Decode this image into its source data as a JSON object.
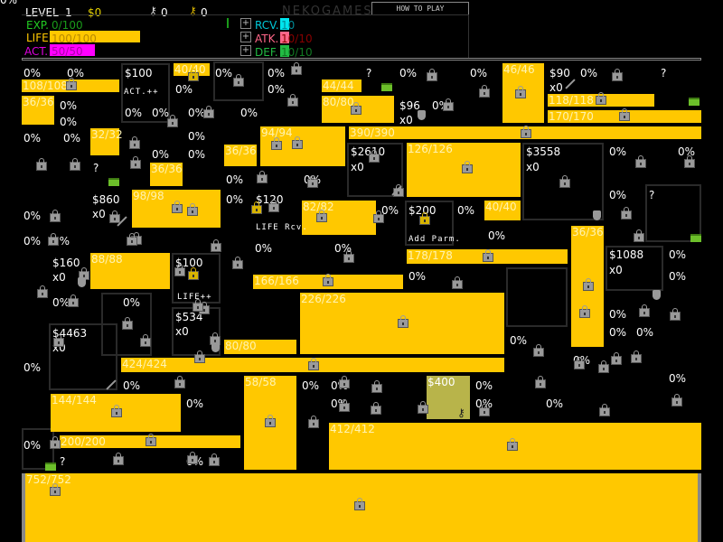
{
  "header": {
    "level_label": "LEVEL",
    "level_value": "1",
    "money": "$0",
    "silver_keys": "0",
    "gold_keys": "0",
    "brand": "NEKOGAMES",
    "how_to_play": "HOW TO PLAY",
    "exp_label": "EXP.",
    "exp_value": "0/100",
    "life_label": "LIFE",
    "life_value": "100/100",
    "life_fraction": 1.0,
    "act_label": "ACT.",
    "act_value": "50/50",
    "act_fraction": 1.0,
    "rcv_label": "RCV.",
    "rcv_value": "10",
    "atk_label": "ATK.",
    "atk_value": "10/10",
    "def_label": "DEF.",
    "def_value": "10/10"
  },
  "colors": {
    "block": "#ffc800",
    "exp": "#22cc22",
    "life": "#ffc800",
    "act": "#ff00ff",
    "rcv": "#00e5ee",
    "atk": "#ff6688",
    "def": "#22bb44",
    "purchased": "#b8b44a"
  },
  "blocks": [
    "108/108",
    "36/36",
    "40/40",
    "44/44",
    "80/80",
    "32/32",
    "36/36",
    "36/36",
    "94/94",
    "390/390",
    "98/98",
    "82/82",
    "46/46",
    "118/118",
    "170/170",
    "126/126",
    "40/40",
    "36/36",
    "178/178",
    "88/88",
    "166/166",
    "226/226",
    "80/80",
    "424/424",
    "144/144",
    "58/58",
    "200/200",
    "412/412",
    "752/752",
    "$400"
  ],
  "labels": [
    "0%",
    "0%",
    "$100",
    "ACT.++",
    "0%",
    "0%",
    "0%",
    "0%",
    "?",
    "0%",
    "0%",
    "$90",
    "x0",
    "0%",
    "?",
    "0%",
    "0%",
    "0%",
    "0%",
    "0%",
    "0%",
    "$96",
    "x0",
    "0%",
    "0%",
    "0%",
    "0%",
    "0%",
    "0%",
    "?",
    "0%",
    "0%",
    "$2610",
    "x0",
    "$3558",
    "x0",
    "0%",
    "0%",
    "0%",
    "?",
    "$860",
    "x0",
    "0%",
    "0%",
    "$120",
    "LIFE Rcv.",
    "0%",
    "$200",
    "Add Parm.",
    "0%",
    "0%",
    "0%",
    "0%",
    "0%",
    "0%",
    "$1088",
    "x0",
    "0%",
    "0%",
    "$160",
    "x0",
    "$100",
    "LIFE++",
    "0%",
    "0%",
    "0%",
    "$534",
    "x0",
    "0%",
    "0%",
    "0%",
    "$4463",
    "x0",
    "0%",
    "0%",
    "0%",
    "0%",
    "0%",
    "0%",
    "0%",
    "0%",
    "0%",
    "0%",
    "0%",
    "0%",
    "0%",
    "?",
    "0%",
    "0%"
  ]
}
